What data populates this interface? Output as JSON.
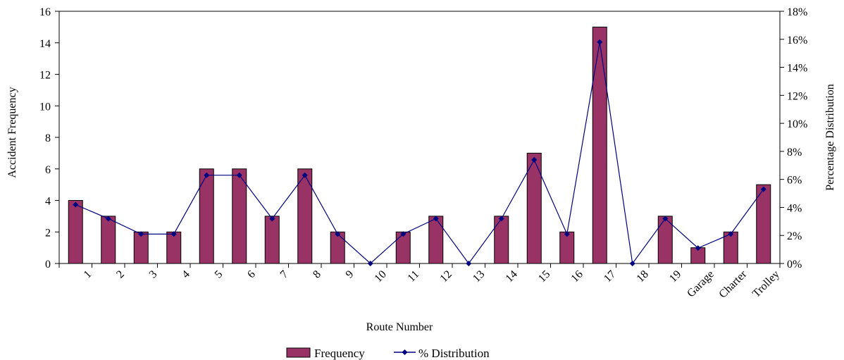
{
  "chart_data": {
    "type": "bar",
    "title": "",
    "categories": [
      "1",
      "2",
      "3",
      "4",
      "5",
      "6",
      "7",
      "8",
      "9",
      "10",
      "11",
      "12",
      "13",
      "14",
      "15",
      "16",
      "17",
      "18",
      "19",
      "Garage",
      "Charter",
      "Trolley"
    ],
    "series": [
      {
        "name": "Frequency",
        "type": "bar",
        "axis": "left",
        "values": [
          4,
          3,
          2,
          2,
          6,
          6,
          3,
          6,
          2,
          0,
          2,
          3,
          0,
          3,
          7,
          2,
          15,
          0,
          3,
          1,
          2,
          5
        ]
      },
      {
        "name": "% Distribution",
        "type": "line",
        "axis": "right",
        "values": [
          4.2,
          3.2,
          2.1,
          2.1,
          6.3,
          6.3,
          3.2,
          6.3,
          2.1,
          0,
          2.1,
          3.2,
          0,
          3.2,
          7.4,
          2.1,
          15.8,
          0,
          3.2,
          1.1,
          2.1,
          5.3
        ]
      }
    ],
    "xlabel": "Route Number",
    "ylabel": "Accident Frequency",
    "y2label": "Percentage Distribution",
    "ylim": [
      0,
      16
    ],
    "y2lim": [
      0,
      18
    ],
    "yticks": [
      "0",
      "2",
      "4",
      "6",
      "8",
      "10",
      "12",
      "14",
      "16"
    ],
    "y2ticks": [
      "0%",
      "2%",
      "4%",
      "6%",
      "8%",
      "10%",
      "12%",
      "14%",
      "16%",
      "18%"
    ],
    "grid": false,
    "legend_position": "bottom-center",
    "colors": {
      "bar": "#993366",
      "line": "#000080",
      "axis": "#000000"
    }
  }
}
